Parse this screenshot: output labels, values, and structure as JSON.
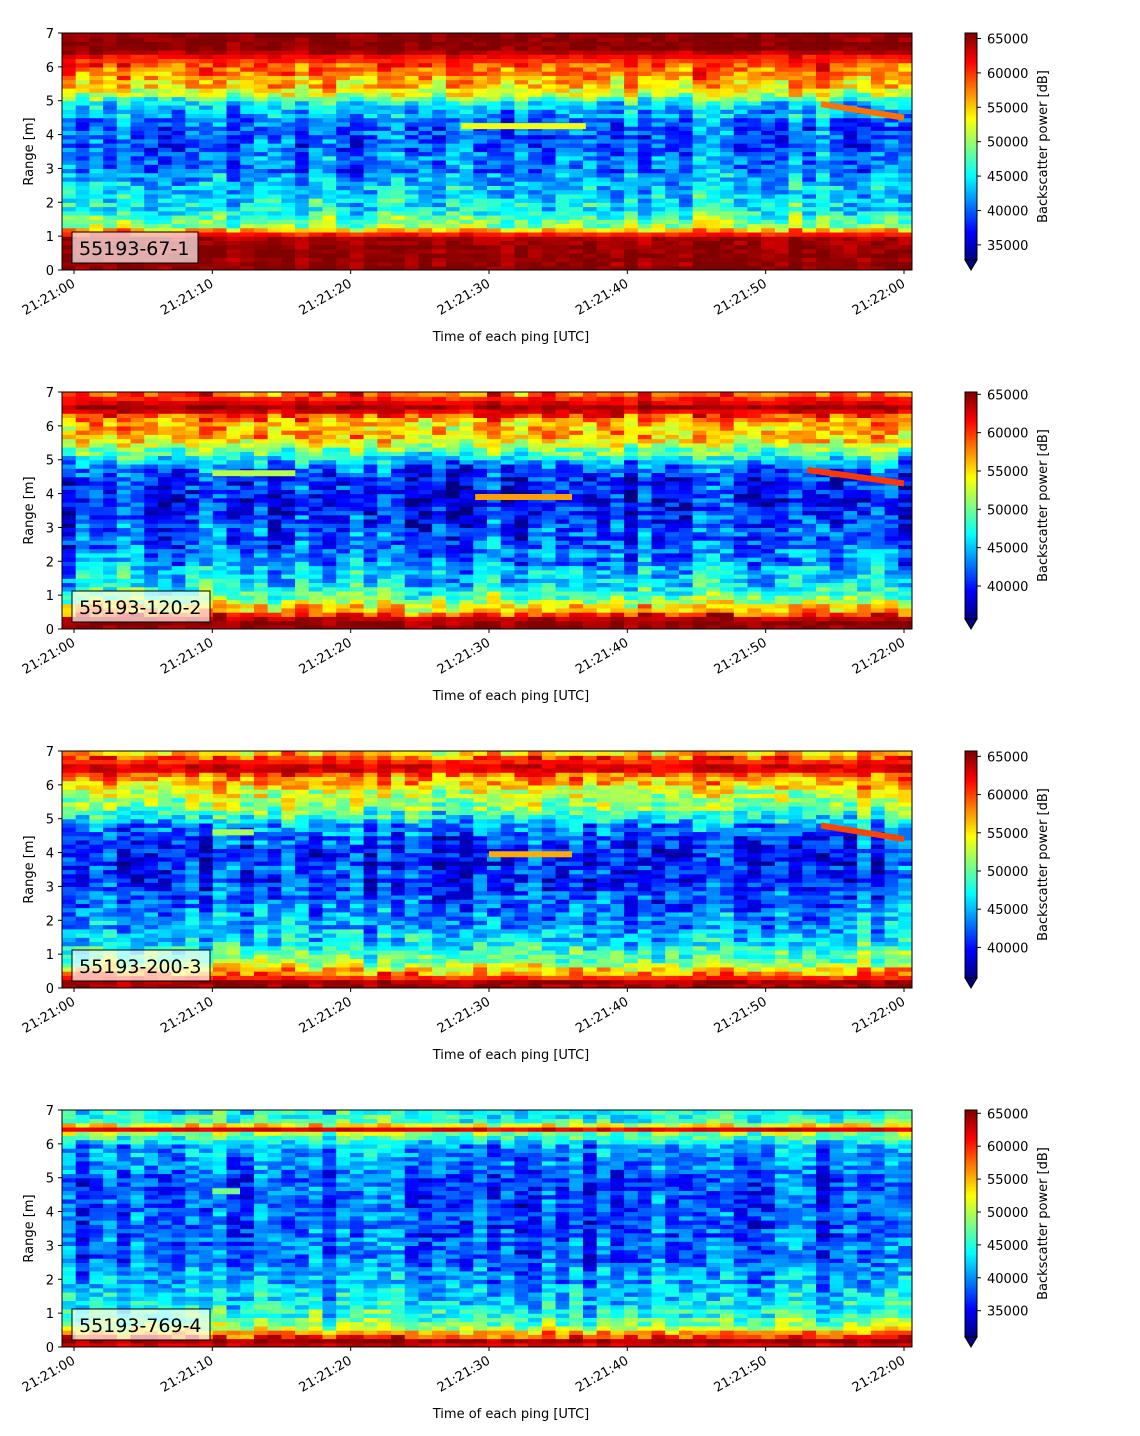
{
  "chart_data": [
    {
      "type": "heatmap",
      "label": "55193-67-1",
      "xlabel": "Time of each ping [UTC]",
      "ylabel": "Range [m]",
      "xlim": [
        "21:21:00",
        "21:22:00"
      ],
      "xticks": [
        "21:21:00",
        "21:21:10",
        "21:21:20",
        "21:21:30",
        "21:21:40",
        "21:21:50",
        "21:22:00"
      ],
      "ylim": [
        0,
        7
      ],
      "yticks": [
        "0",
        "1",
        "2",
        "3",
        "4",
        "5",
        "6",
        "7"
      ],
      "colorbar": {
        "label": "Backscatter power [dB]",
        "colormap": "jet",
        "range": [
          32800,
          65800
        ],
        "ticks": [
          "35000",
          "40000",
          "45000",
          "50000",
          "55000",
          "60000",
          "65000"
        ],
        "extend": "min"
      },
      "profile": {
        "range_m": [
          0.0,
          0.25,
          0.5,
          1.0,
          1.15,
          1.3,
          1.7,
          2.2,
          3.0,
          3.8,
          4.4,
          4.9,
          5.3,
          5.7,
          6.0,
          6.35,
          6.5,
          7.0
        ],
        "power": [
          65500,
          65500,
          65500,
          64000,
          57000,
          51000,
          46000,
          44000,
          41000,
          40000,
          40500,
          45000,
          53000,
          57000,
          58500,
          62000,
          65500,
          65500
        ]
      },
      "features": [
        {
          "x0": "21:21:28",
          "x1": "21:21:37",
          "range_start_m": 4.25,
          "range_end_m": 4.25,
          "power": 53000
        },
        {
          "x0": "21:21:54",
          "x1": "21:22:00",
          "range_start_m": 4.9,
          "range_end_m": 4.5,
          "power": 58000
        }
      ]
    },
    {
      "type": "heatmap",
      "label": "55193-120-2",
      "xlabel": "Time of each ping [UTC]",
      "ylabel": "Range [m]",
      "xlim": [
        "21:21:00",
        "21:22:00"
      ],
      "xticks": [
        "21:21:00",
        "21:21:10",
        "21:21:20",
        "21:21:30",
        "21:21:40",
        "21:21:50",
        "21:22:00"
      ],
      "ylim": [
        0,
        7
      ],
      "yticks": [
        "0",
        "1",
        "2",
        "3",
        "4",
        "5",
        "6",
        "7"
      ],
      "colorbar": {
        "label": "Backscatter power [dB]",
        "colormap": "jet",
        "range": [
          35700,
          65300
        ],
        "ticks": [
          "40000",
          "45000",
          "50000",
          "55000",
          "60000",
          "65000"
        ],
        "extend": "min"
      },
      "profile": {
        "range_m": [
          0.0,
          0.3,
          0.5,
          0.8,
          1.2,
          2.0,
          3.0,
          4.0,
          4.6,
          5.0,
          5.5,
          6.0,
          6.3,
          6.5,
          6.75,
          7.0
        ],
        "power": [
          65000,
          64000,
          58000,
          52000,
          47000,
          43500,
          41000,
          40000,
          41000,
          45000,
          54000,
          56500,
          58500,
          64500,
          62000,
          58000
        ]
      },
      "features": [
        {
          "x0": "21:21:10",
          "x1": "21:21:16",
          "range_start_m": 4.6,
          "range_end_m": 4.6,
          "power": 52000
        },
        {
          "x0": "21:21:29",
          "x1": "21:21:36",
          "range_start_m": 3.9,
          "range_end_m": 3.9,
          "power": 57000
        },
        {
          "x0": "21:21:53",
          "x1": "21:22:00",
          "range_start_m": 4.7,
          "range_end_m": 4.3,
          "power": 60000
        }
      ]
    },
    {
      "type": "heatmap",
      "label": "55193-200-3",
      "xlabel": "Time of each ping [UTC]",
      "ylabel": "Range [m]",
      "xlim": [
        "21:21:00",
        "21:22:00"
      ],
      "xticks": [
        "21:21:00",
        "21:21:10",
        "21:21:20",
        "21:21:30",
        "21:21:40",
        "21:21:50",
        "21:22:00"
      ],
      "ylim": [
        0,
        7
      ],
      "yticks": [
        "0",
        "1",
        "2",
        "3",
        "4",
        "5",
        "6",
        "7"
      ],
      "colorbar": {
        "label": "Backscatter power [dB]",
        "colormap": "jet",
        "range": [
          36000,
          65700
        ],
        "ticks": [
          "40000",
          "45000",
          "50000",
          "55000",
          "60000",
          "65000"
        ],
        "extend": "min"
      },
      "profile": {
        "range_m": [
          0.0,
          0.2,
          0.4,
          0.7,
          1.2,
          2.0,
          3.0,
          4.0,
          4.6,
          5.0,
          5.5,
          6.0,
          6.25,
          6.5,
          6.75,
          7.0
        ],
        "power": [
          64500,
          64500,
          58000,
          52000,
          47000,
          44000,
          41500,
          40500,
          42000,
          46000,
          52000,
          55000,
          58000,
          64500,
          60000,
          56000
        ]
      },
      "features": [
        {
          "x0": "21:21:10",
          "x1": "21:21:13",
          "range_start_m": 4.6,
          "range_end_m": 4.6,
          "power": 52000
        },
        {
          "x0": "21:21:30",
          "x1": "21:21:36",
          "range_start_m": 3.95,
          "range_end_m": 3.95,
          "power": 57000
        },
        {
          "x0": "21:21:54",
          "x1": "21:22:00",
          "range_start_m": 4.8,
          "range_end_m": 4.4,
          "power": 60000
        }
      ]
    },
    {
      "type": "heatmap",
      "label": "55193-769-4",
      "xlabel": "Time of each ping [UTC]",
      "ylabel": "Range [m]",
      "xlim": [
        "21:21:00",
        "21:22:00"
      ],
      "xticks": [
        "21:21:00",
        "21:21:10",
        "21:21:20",
        "21:21:30",
        "21:21:40",
        "21:21:50",
        "21:22:00"
      ],
      "ylim": [
        0,
        7
      ],
      "yticks": [
        "0",
        "1",
        "2",
        "3",
        "4",
        "5",
        "6",
        "7"
      ],
      "colorbar": {
        "label": "Backscatter power [dB]",
        "colormap": "jet",
        "range": [
          31000,
          65500
        ],
        "ticks": [
          "35000",
          "40000",
          "45000",
          "50000",
          "55000",
          "60000",
          "65000"
        ],
        "extend": "min"
      },
      "profile": {
        "range_m": [
          0.0,
          0.2,
          0.3,
          0.6,
          1.0,
          1.5,
          2.5,
          3.5,
          4.5,
          5.5,
          6.0,
          6.3,
          6.45,
          6.6,
          6.8,
          7.0
        ],
        "power": [
          62000,
          64500,
          60000,
          48000,
          45000,
          42000,
          39000,
          38000,
          38000,
          39000,
          41000,
          48000,
          63500,
          48000,
          45000,
          44000
        ]
      },
      "features": [
        {
          "x0": "21:21:10",
          "x1": "21:21:12",
          "range_start_m": 4.6,
          "range_end_m": 4.6,
          "power": 48000
        }
      ]
    }
  ]
}
